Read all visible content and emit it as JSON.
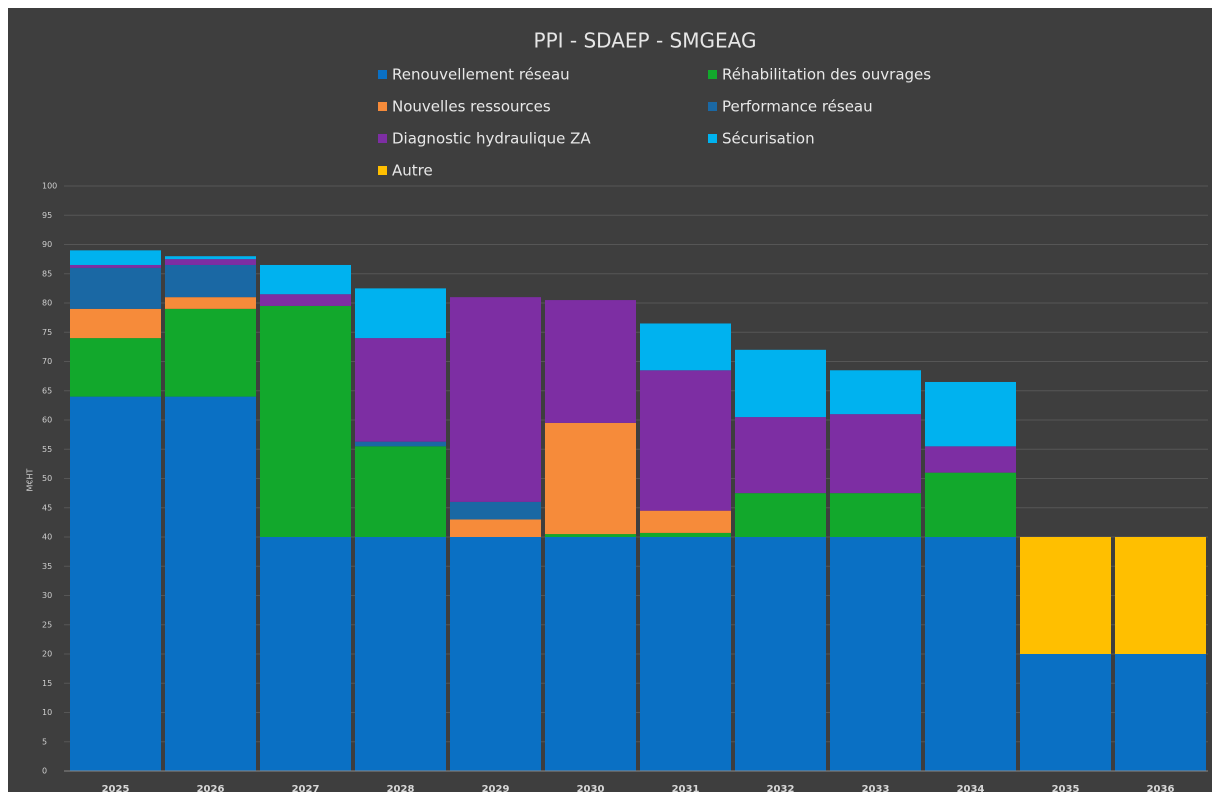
{
  "chart_data": {
    "type": "stacked_bar",
    "title": "PPI - SDAEP -  SMGEAG",
    "y_label": "M€HT",
    "categories": [
      "2025",
      "2026",
      "2027",
      "2028",
      "2029",
      "2030",
      "2031",
      "2032",
      "2033",
      "2034",
      "2035",
      "2036"
    ],
    "series": [
      {
        "name": "Renouvellement réseau",
        "color": "#0a70c4",
        "values": [
          64,
          64,
          40,
          40,
          40,
          40,
          40,
          40,
          40,
          40,
          20,
          20
        ]
      },
      {
        "name": "Réhabilitation des ouvrages",
        "color": "#12a82c",
        "values": [
          10,
          15,
          39.5,
          15.5,
          0,
          0.5,
          0.7,
          7.5,
          7.5,
          11,
          0,
          0
        ]
      },
      {
        "name": "Nouvelles ressources",
        "color": "#f68b3a",
        "values": [
          5,
          2,
          0,
          0,
          3,
          19,
          3.8,
          0,
          0,
          0,
          0,
          0
        ]
      },
      {
        "name": "Performance réseau",
        "color": "#1a68a4",
        "values": [
          7,
          5.5,
          0,
          0.8,
          3,
          0,
          0,
          0,
          0,
          0,
          0,
          0
        ]
      },
      {
        "name": "Diagnostic hydraulique ZA",
        "color": "#7d2ea3",
        "values": [
          0.5,
          1,
          2,
          17.7,
          35,
          21,
          24,
          13,
          13.5,
          4.5,
          0,
          0
        ]
      },
      {
        "name": "Sécurisation",
        "color": "#00b2ef",
        "values": [
          2.5,
          0.5,
          5,
          8.5,
          0,
          0,
          8,
          11.5,
          7.5,
          11,
          0,
          0
        ]
      },
      {
        "name": "Autre",
        "color": "#ffbf00",
        "values": [
          0,
          0,
          0,
          0,
          0,
          0,
          0,
          0,
          0,
          0,
          20,
          20
        ]
      }
    ],
    "ylim": [
      0,
      100
    ],
    "yticks": [
      0,
      5,
      10,
      15,
      20,
      25,
      30,
      35,
      40,
      45,
      50,
      55,
      60,
      65,
      70,
      75,
      80,
      85,
      90,
      95,
      100
    ],
    "grid": true
  }
}
